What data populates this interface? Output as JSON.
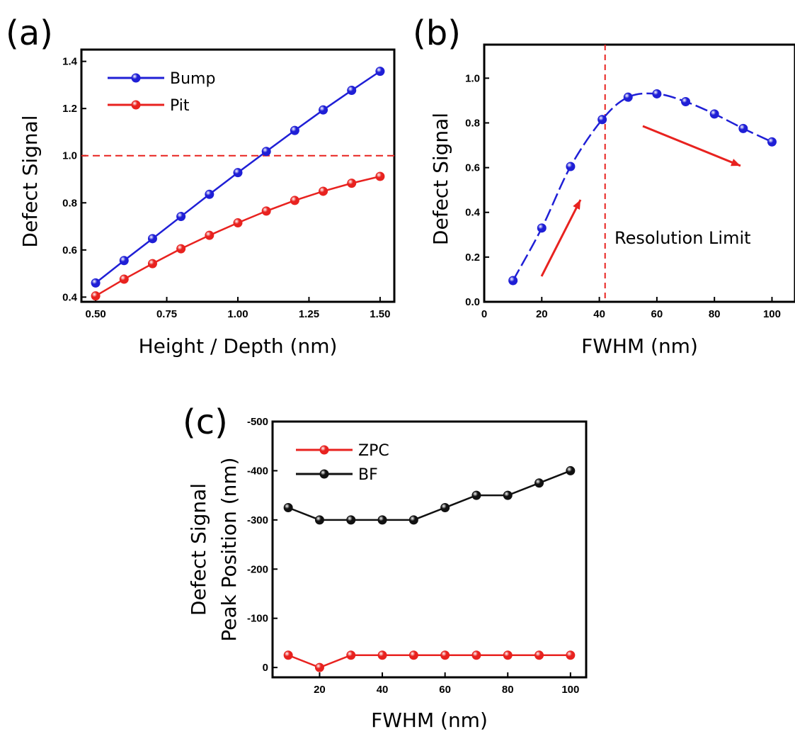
{
  "colors": {
    "blue": "#1f1fd6",
    "red": "#e8221f",
    "black": "#111111",
    "axis": "#000000"
  },
  "chart_data": [
    {
      "panel": "(a)",
      "type": "line",
      "xlabel": "Height / Depth (nm)",
      "ylabel": "Defect Signal",
      "xlim": [
        0.45,
        1.55
      ],
      "ylim": [
        0.38,
        1.45
      ],
      "xticks": [
        0.5,
        0.75,
        1.0,
        1.25,
        1.5
      ],
      "xtick_labels": [
        "0.50",
        "0.75",
        "1.00",
        "1.25",
        "1.50"
      ],
      "yticks": [
        0.4,
        0.6,
        0.8,
        1.0,
        1.2,
        1.4
      ],
      "ytick_labels": [
        "0.4",
        "0.6",
        "0.8",
        "1.0",
        "1.2",
        "1.4"
      ],
      "legend": "top-left",
      "grid": false,
      "x": [
        0.5,
        0.6,
        0.7,
        0.8,
        0.9,
        1.0,
        1.1,
        1.2,
        1.3,
        1.4,
        1.5
      ],
      "series": [
        {
          "name": "Bump",
          "color": "blue",
          "values": [
            0.46,
            0.555,
            0.648,
            0.742,
            0.836,
            0.928,
            1.018,
            1.107,
            1.194,
            1.277,
            1.358
          ]
        },
        {
          "name": "Pit",
          "color": "red",
          "values": [
            0.405,
            0.476,
            0.542,
            0.605,
            0.662,
            0.715,
            0.765,
            0.81,
            0.849,
            0.883,
            0.912
          ]
        }
      ],
      "reference_line": {
        "axis": "y",
        "value": 1.0,
        "style": "dashed",
        "color": "red"
      }
    },
    {
      "panel": "(b)",
      "type": "line",
      "xlabel": "FWHM (nm)",
      "ylabel": "Defect Signal",
      "xlim": [
        0,
        108
      ],
      "ylim": [
        0,
        1.15
      ],
      "xticks": [
        0,
        20,
        40,
        60,
        80,
        100
      ],
      "xtick_labels": [
        "0",
        "20",
        "40",
        "60",
        "80",
        "100"
      ],
      "yticks": [
        0.0,
        0.2,
        0.4,
        0.6,
        0.8,
        1.0
      ],
      "ytick_labels": [
        "0.0",
        "0.2",
        "0.4",
        "0.6",
        "0.8",
        "1.0"
      ],
      "grid": false,
      "series": [
        {
          "color": "blue",
          "x": [
            10,
            20,
            30,
            41,
            50,
            60,
            70,
            80,
            90,
            100
          ],
          "values": [
            0.095,
            0.33,
            0.605,
            0.815,
            0.915,
            0.93,
            0.895,
            0.84,
            0.775,
            0.715
          ]
        }
      ],
      "reference_line": {
        "axis": "x",
        "value": 42,
        "style": "dashed",
        "color": "red"
      },
      "annotation": "Resolution Limit"
    },
    {
      "panel": "(c)",
      "type": "line",
      "xlabel": "FWHM (nm)",
      "ylabel": [
        "Defect Signal",
        "Peak Position (nm)"
      ],
      "xlim": [
        5,
        105
      ],
      "ylim": [
        20,
        -500
      ],
      "xticks": [
        20,
        40,
        60,
        80,
        100
      ],
      "xtick_labels": [
        "20",
        "40",
        "60",
        "80",
        "100"
      ],
      "yticks": [
        0,
        -100,
        -200,
        -300,
        -400,
        -500
      ],
      "ytick_labels": [
        "0",
        "-100",
        "-200",
        "-300",
        "-400",
        "-500"
      ],
      "legend": "top-left",
      "grid": false,
      "x": [
        10,
        20,
        30,
        40,
        50,
        60,
        70,
        80,
        90,
        100
      ],
      "series": [
        {
          "name": "ZPC",
          "color": "red",
          "values": [
            -25,
            0,
            -25,
            -25,
            -25,
            -25,
            -25,
            -25,
            -25,
            -25
          ]
        },
        {
          "name": "BF",
          "color": "black",
          "values": [
            -325,
            -300,
            -300,
            -300,
            -300,
            -325,
            -350,
            -350,
            -375,
            -400
          ]
        }
      ]
    }
  ]
}
